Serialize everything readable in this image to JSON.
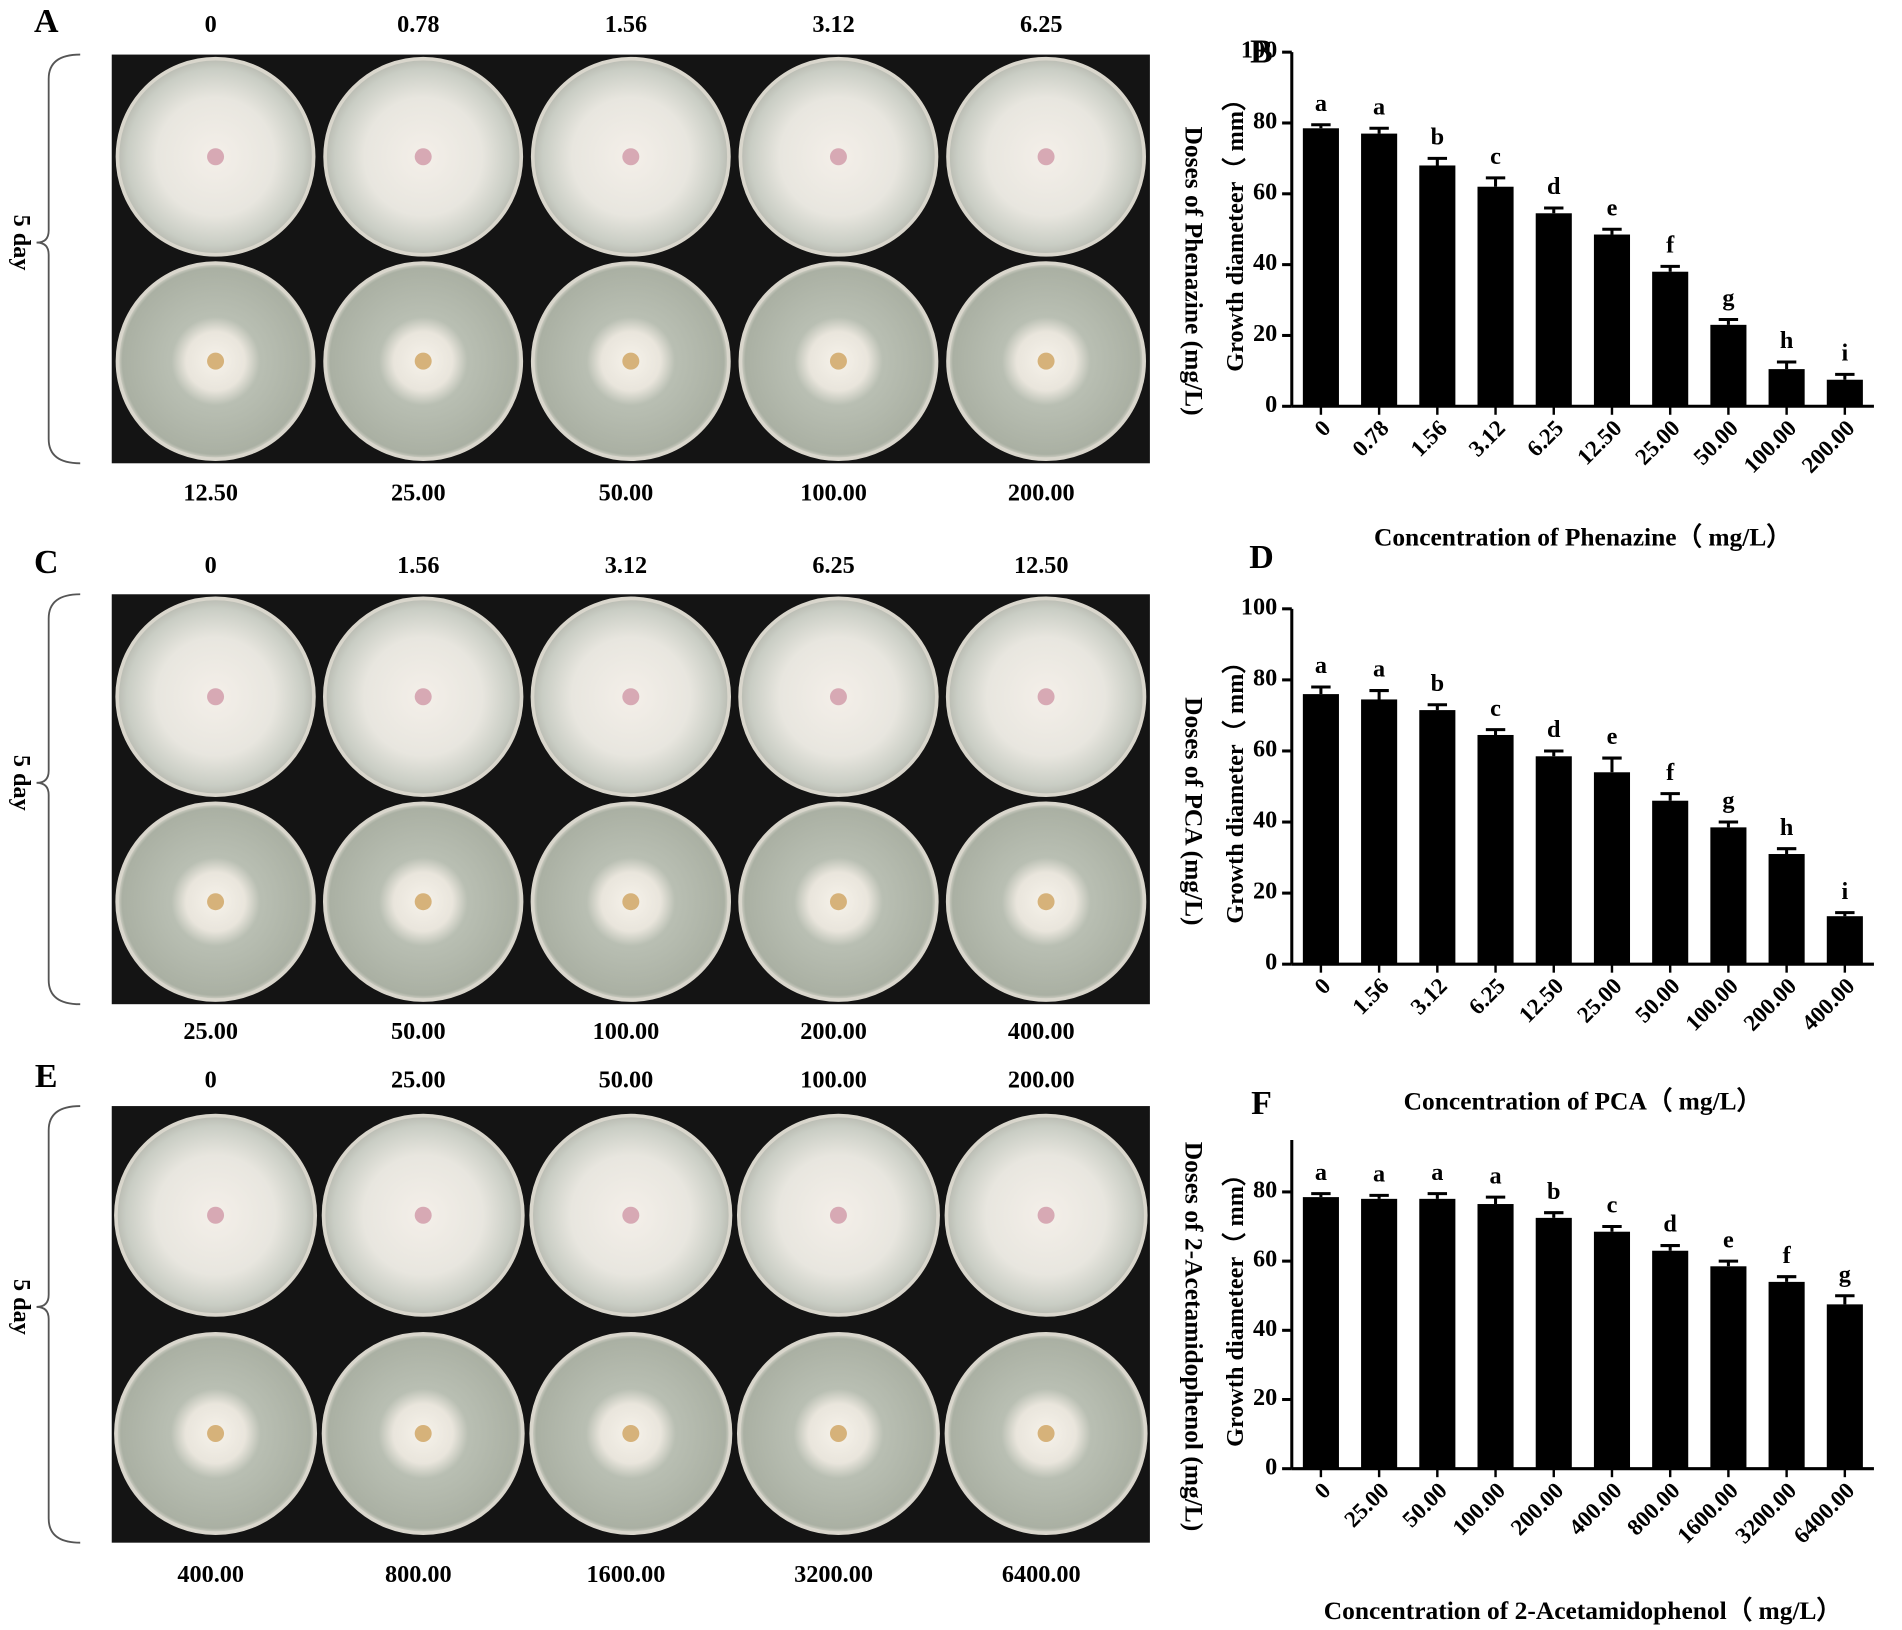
{
  "photo_panels": [
    {
      "letter": "A",
      "side_label": "5 day",
      "axis_title": "Doses of Phenazine (mg/L)",
      "top_labels": [
        "0",
        "0.78",
        "1.56",
        "3.12",
        "6.25"
      ],
      "bottom_labels": [
        "12.50",
        "25.00",
        "50.00",
        "100.00",
        "200.00"
      ]
    },
    {
      "letter": "C",
      "side_label": "5 day",
      "axis_title": "Doses of PCA (mg/L)",
      "top_labels": [
        "0",
        "1.56",
        "3.12",
        "6.25",
        "12.50"
      ],
      "bottom_labels": [
        "25.00",
        "50.00",
        "100.00",
        "200.00",
        "400.00"
      ]
    },
    {
      "letter": "E",
      "side_label": "5 day",
      "axis_title": "Doses of 2-Acetamidophenol (mg/L)",
      "top_labels": [
        "0",
        "25.00",
        "50.00",
        "100.00",
        "200.00"
      ],
      "bottom_labels": [
        "400.00",
        "800.00",
        "1600.00",
        "3200.00",
        "6400.00"
      ]
    }
  ],
  "chart_data": [
    {
      "type": "bar",
      "letter": "B",
      "ylabel": "Growth diameteer（ mm）",
      "xlabel": "Concentration of Phenazine（ mg/L）",
      "categories": [
        "0",
        "0.78",
        "1.56",
        "3.12",
        "6.25",
        "12.50",
        "25.00",
        "50.00",
        "100.00",
        "200.00"
      ],
      "values": [
        78.5,
        77,
        68,
        62,
        54.5,
        48.5,
        38,
        23,
        10.5,
        7.5
      ],
      "errors": [
        1,
        1.5,
        2,
        2.5,
        1.5,
        1.5,
        1.5,
        1.5,
        2,
        1.5
      ],
      "annotations": [
        "a",
        "a",
        "b",
        "c",
        "d",
        "e",
        "f",
        "g",
        "h",
        "i"
      ],
      "color": "#000000",
      "ylim": [
        0,
        100
      ],
      "yticks": [
        0,
        20,
        40,
        60,
        80,
        100
      ]
    },
    {
      "type": "bar",
      "letter": "D",
      "ylabel": "Growth diameter（ mm）",
      "xlabel": "Concentration of PCA（ mg/L）",
      "categories": [
        "0",
        "1.56",
        "3.12",
        "6.25",
        "12.50",
        "25.00",
        "50.00",
        "100.00",
        "200.00",
        "400.00"
      ],
      "values": [
        76,
        74.5,
        71.5,
        64.5,
        58.5,
        54,
        46,
        38.5,
        31,
        13.5
      ],
      "errors": [
        2,
        2.5,
        1.5,
        1.5,
        1.5,
        4,
        2,
        1.5,
        1.5,
        1
      ],
      "annotations": [
        "a",
        "a",
        "b",
        "c",
        "d",
        "e",
        "f",
        "g",
        "h",
        "i"
      ],
      "color": "#000000",
      "ylim": [
        0,
        100
      ],
      "yticks": [
        0,
        20,
        40,
        60,
        80,
        100
      ]
    },
    {
      "type": "bar",
      "letter": "F",
      "ylabel": "Growth diameteer（ mm）",
      "xlabel": "Concentration of 2-Acetamidophenol（ mg/L）",
      "categories": [
        "0",
        "25.00",
        "50.00",
        "100.00",
        "200.00",
        "400.00",
        "800.00",
        "1600.00",
        "3200.00",
        "6400.00"
      ],
      "values": [
        78.5,
        78,
        78,
        76.5,
        72.5,
        68.5,
        63,
        58.5,
        54,
        47.5
      ],
      "errors": [
        1,
        1,
        1.5,
        2,
        1.5,
        1.5,
        1.5,
        1.5,
        1.5,
        2.5
      ],
      "annotations": [
        "a",
        "a",
        "a",
        "a",
        "b",
        "c",
        "d",
        "e",
        "f",
        "g"
      ],
      "color": "#000000",
      "ylim": [
        0,
        95
      ],
      "yticks": [
        0,
        20,
        40,
        60,
        80
      ]
    }
  ]
}
